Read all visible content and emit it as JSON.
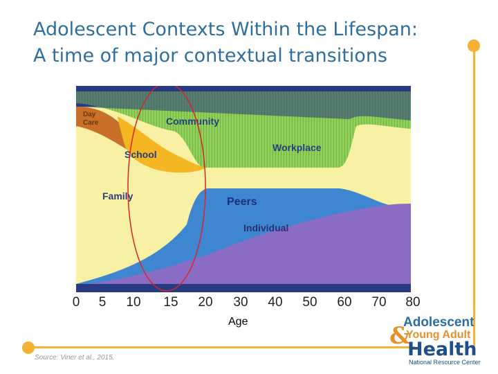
{
  "slide": {
    "title_line1": "Adolescent Contexts Within the Lifespan:",
    "title_line2": "A time of major contextual transitions",
    "source": "Source: Viner et al., 2015."
  },
  "diagram": {
    "regions": {
      "day_care": [
        "Day",
        "Care"
      ],
      "community": "Community",
      "school": "School",
      "workplace": "Workplace",
      "family": "Family",
      "peers": "Peers",
      "individual": "Individual"
    },
    "x_axis": {
      "ticks": [
        "0",
        "5",
        "10",
        "15",
        "20",
        "30",
        "40",
        "50",
        "60",
        "70",
        "80"
      ],
      "label": "Age"
    },
    "highlight": "ages 10-20",
    "colors": {
      "background": "#f8f1a3",
      "community": "#8fcf5a",
      "peers": "#3f86d1",
      "individual": "#8b6cc4",
      "school": "#f4b623",
      "daycare": "#c8702a",
      "navy": "#283a82",
      "highlight": "#d6262b"
    }
  },
  "logo": {
    "line1": "Adolescent",
    "amp": "&",
    "line2": "Young Adult",
    "line3": "Health",
    "line4": "National Resource Center"
  }
}
